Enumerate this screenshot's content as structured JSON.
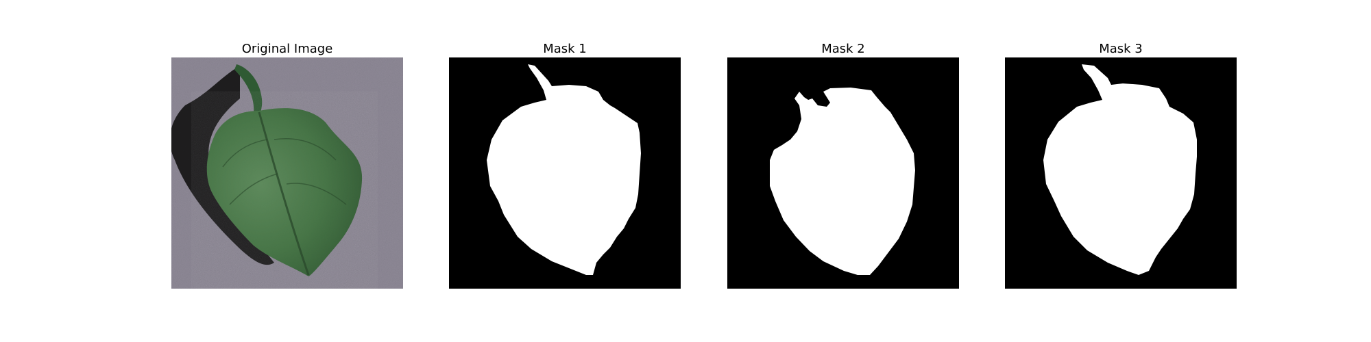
{
  "panels": [
    {
      "title": "Original Image",
      "kind": "photo"
    },
    {
      "title": "Mask 1",
      "kind": "mask"
    },
    {
      "title": "Mask 2",
      "kind": "mask"
    },
    {
      "title": "Mask 3",
      "kind": "mask"
    }
  ],
  "colors": {
    "mask_background": "#000000",
    "mask_foreground": "#ffffff",
    "photo_background": "#8a8592",
    "leaf_dark": "#2f5a33",
    "leaf_light": "#5e8c5c",
    "shadow": "#151515"
  }
}
